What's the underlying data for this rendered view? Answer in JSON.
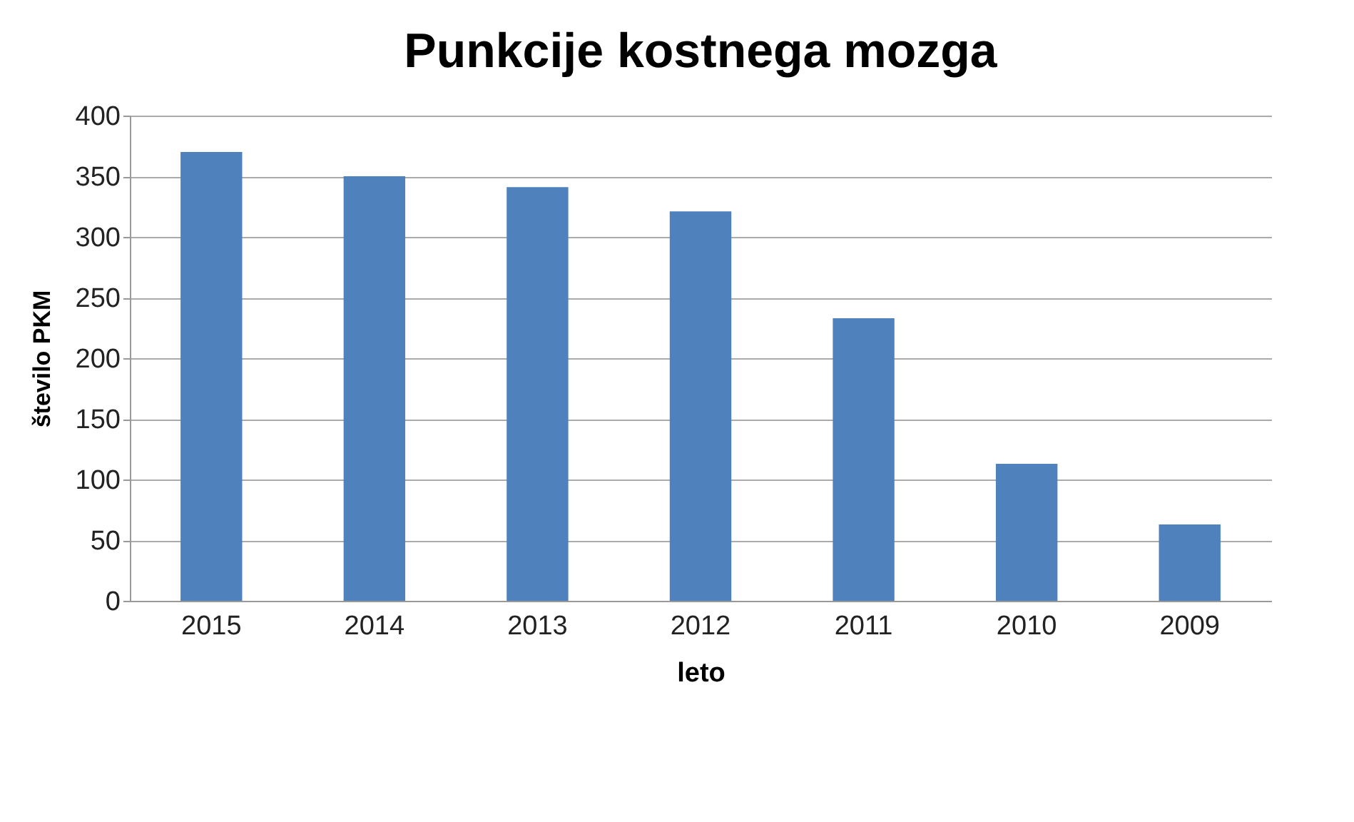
{
  "chart_data": {
    "type": "bar",
    "title": "Punkcije kostnega mozga",
    "xlabel": "leto",
    "ylabel": "število PKM",
    "categories": [
      "2015",
      "2014",
      "2013",
      "2012",
      "2011",
      "2010",
      "2009"
    ],
    "values": [
      370,
      350,
      341,
      321,
      233,
      113,
      63
    ],
    "color": "#4f81bd",
    "ylim": [
      0,
      400
    ],
    "yticks": [
      0,
      50,
      100,
      150,
      200,
      250,
      300,
      350,
      400
    ],
    "grid": "y"
  }
}
